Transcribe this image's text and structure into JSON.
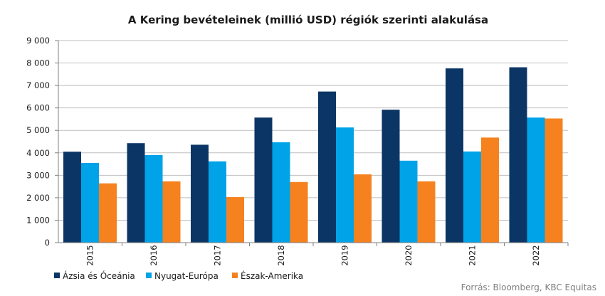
{
  "chart_data": {
    "type": "bar",
    "title": "A Kering bevételeinek  (millió USD) régiók szerinti alakulása",
    "categories": [
      "2015",
      "2016",
      "2017",
      "2018",
      "2019",
      "2020",
      "2021",
      "2022"
    ],
    "series": [
      {
        "name": "Ázsia és Óceánia",
        "color": "#0b3564",
        "values": [
          4050,
          4430,
          4360,
          5570,
          6730,
          5920,
          7760,
          7810
        ]
      },
      {
        "name": "Nyugat-Európa",
        "color": "#00a3e8",
        "values": [
          3550,
          3900,
          3620,
          4470,
          5130,
          3650,
          4060,
          5570
        ]
      },
      {
        "name": "Észak-Amerika",
        "color": "#f5821f",
        "values": [
          2640,
          2730,
          2030,
          2700,
          3040,
          2730,
          4680,
          5530
        ]
      }
    ],
    "ylim": [
      0,
      9000
    ],
    "yticks": [
      0,
      1000,
      2000,
      3000,
      4000,
      5000,
      6000,
      7000,
      8000,
      9000
    ],
    "ytick_labels": [
      "0",
      "1 000",
      "2 000",
      "3 000",
      "4 000",
      "5 000",
      "6 000",
      "7 000",
      "8 000",
      "9 000"
    ],
    "grid": true,
    "legend_position": "bottom-left",
    "source": "Forrás: Bloomberg,  KBC Equitas"
  }
}
